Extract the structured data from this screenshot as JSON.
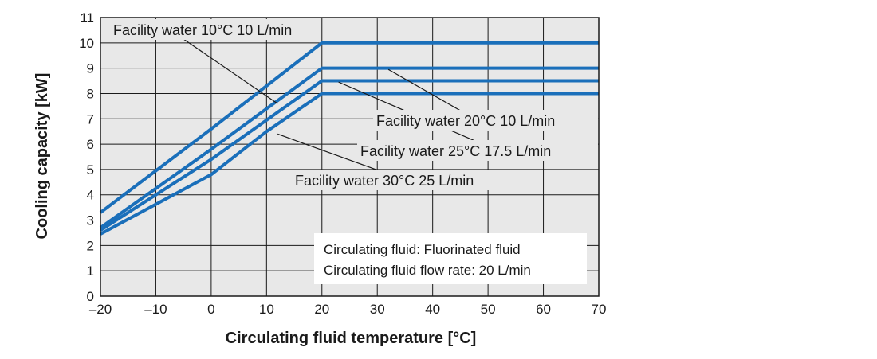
{
  "chart_data": {
    "type": "line",
    "title": "",
    "xlabel": "Circulating fluid temperature [°C]",
    "ylabel": "Cooling capacity [kW]",
    "xlim": [
      -20,
      70
    ],
    "ylim": [
      0,
      11
    ],
    "x_ticks": [
      "–20",
      "–10",
      "0",
      "10",
      "20",
      "30",
      "40",
      "50",
      "60",
      "70"
    ],
    "y_ticks": [
      "0",
      "1",
      "2",
      "3",
      "4",
      "5",
      "6",
      "7",
      "8",
      "9",
      "10",
      "11"
    ],
    "grid": true,
    "line_color": "#1a6fba",
    "series": [
      {
        "name": "Facility water 10°C 10 L/min",
        "points": [
          [
            -20,
            3.3
          ],
          [
            0,
            6.6
          ],
          [
            20,
            10.0
          ],
          [
            70,
            10.0
          ]
        ]
      },
      {
        "name": "Facility water 20°C 10 L/min",
        "points": [
          [
            -20,
            2.7
          ],
          [
            0,
            5.8
          ],
          [
            20,
            9.0
          ],
          [
            70,
            9.0
          ]
        ]
      },
      {
        "name": "Facility water 25°C 17.5 L/min",
        "points": [
          [
            -20,
            2.6
          ],
          [
            0,
            5.4
          ],
          [
            20,
            8.5
          ],
          [
            70,
            8.5
          ]
        ]
      },
      {
        "name": "Facility water 30°C 25 L/min",
        "points": [
          [
            -20,
            2.45
          ],
          [
            0,
            4.8
          ],
          [
            10,
            6.5
          ],
          [
            20,
            8.0
          ],
          [
            70,
            8.0
          ]
        ]
      }
    ],
    "note": {
      "line1": "Circulating fluid: Fluorinated fluid",
      "line2": "Circulating fluid flow rate: 20 L/min"
    }
  }
}
